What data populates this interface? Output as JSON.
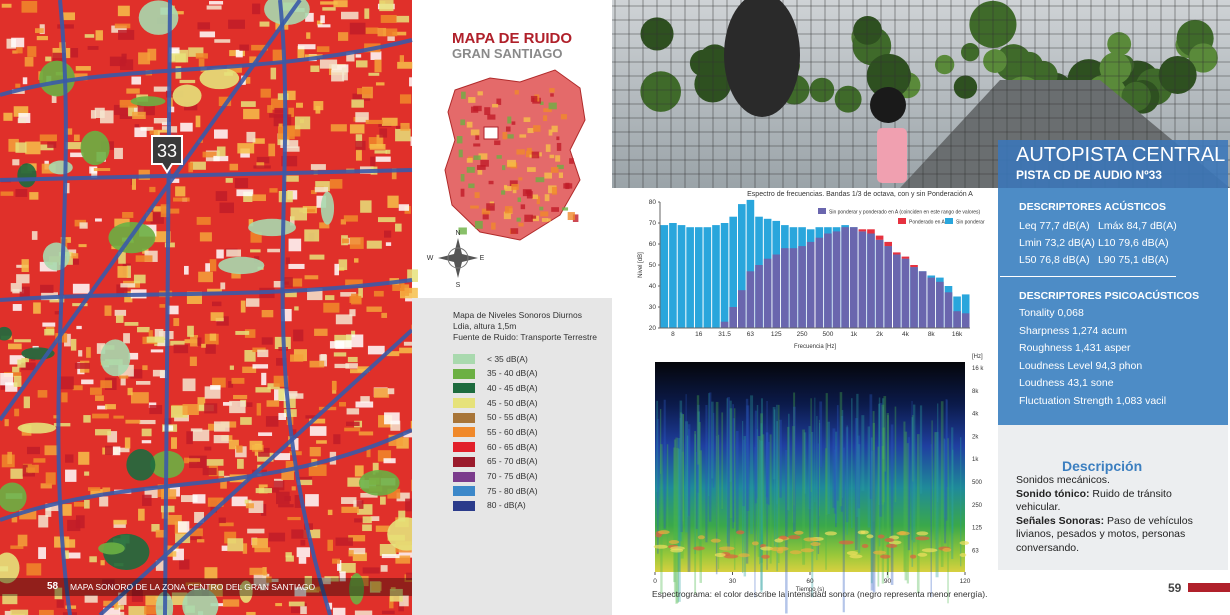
{
  "left_page": {
    "page_number": "58",
    "footer": "MAPA SONORO DE LA ZONA CENTRO DEL GRAN SANTIAGO",
    "marker": "33"
  },
  "map_panel": {
    "title": "MAPA DE RUIDO",
    "subtitle": "GRAN SANTIAGO",
    "compass": [
      "N",
      "S",
      "W",
      "E"
    ],
    "legend_title": [
      "Mapa de Niveles Sonoros Diurnos",
      "Ldia, altura 1,5m",
      "Fuente de Ruido: Transporte Terrestre"
    ],
    "legend": [
      {
        "label": "< 35  dB(A)",
        "color": "#a9d9ae"
      },
      {
        "label": "35  -  40  dB(A)",
        "color": "#6cb043"
      },
      {
        "label": "40  -  45  dB(A)",
        "color": "#1d6b3e"
      },
      {
        "label": "45  -  50  dB(A)",
        "color": "#e6e27a"
      },
      {
        "label": "50  -  55  dB(A)",
        "color": "#a87538"
      },
      {
        "label": "55  -  60  dB(A)",
        "color": "#f0892a"
      },
      {
        "label": "60  -  65  dB(A)",
        "color": "#e2202b"
      },
      {
        "label": "65  -  70  dB(A)",
        "color": "#9b1b2c"
      },
      {
        "label": "70  -  75  dB(A)",
        "color": "#7b3b8c"
      },
      {
        "label": "75  -  80  dB(A)",
        "color": "#3c88c9"
      },
      {
        "label": "80  -         dB(A)",
        "color": "#2b3b8b"
      }
    ]
  },
  "right_page": {
    "title": "AUTOPISTA CENTRAL",
    "subtitle": "PISTA CD DE AUDIO Nº33",
    "acoustic": {
      "heading": "DESCRIPTORES ACÚSTICOS",
      "items": [
        "Leq 77,7 dB(A)",
        "Lmáx 84,7 dB(A)",
        "Lmin 73,2 dB(A)",
        "L10 79,6 dB(A)",
        "L50 76,8 dB(A)",
        "L90 75,1 dB(A)"
      ]
    },
    "psycho": {
      "heading": "DESCRIPTORES PSICOACÚSTICOS",
      "items": [
        "Tonality 0,068",
        "Sharpness 1,274 acum",
        "Roughness 1,431 asper",
        "Loudness Level 94,3 phon",
        "Loudness 43,1 sone",
        "Fluctuation Strength 1,083 vacil"
      ]
    },
    "description": {
      "heading": "Descripción",
      "line1": "Sonidos mecánicos.",
      "tonal_label": "Sonido tónico:",
      "tonal_text": " Ruido de tránsito vehicular.",
      "signals_label": "Señales Sonoras:",
      "signals_text": " Paso de vehículos livianos, pesados y motos, personas conversando."
    },
    "caption": "Espectrograma: el color describe la intensidad sonora (negro representa menor energía).",
    "page_number": "59"
  },
  "spectrum": {
    "type": "bar",
    "title": "Espectro de frecuencias. Bandas 1/3 de octava, con y sin Ponderación A",
    "xlabel": "Frecuencia [Hz]",
    "ylabel": "Nivel [dB]",
    "categories": [
      null,
      "8",
      null,
      null,
      "16",
      null,
      null,
      "31.5",
      null,
      null,
      "63",
      null,
      null,
      "125",
      null,
      null,
      "250",
      null,
      null,
      "500",
      null,
      null,
      "1k",
      null,
      null,
      "2k",
      null,
      null,
      "4k",
      null,
      null,
      "8k",
      null,
      null,
      "16k",
      null
    ],
    "series": [
      {
        "name": "Sin ponderar",
        "color": "#29a6dc",
        "values": [
          69,
          70,
          69,
          68,
          68,
          68,
          69,
          70,
          73,
          79,
          81,
          73,
          72,
          71,
          69,
          68,
          68,
          67,
          68,
          68,
          68,
          69,
          68,
          66,
          65,
          62,
          59,
          55,
          53,
          49,
          47,
          45,
          44,
          40,
          35,
          36
        ]
      },
      {
        "name": "Ponderado en A",
        "color": "#e6313f",
        "values": [
          null,
          null,
          null,
          null,
          null,
          null,
          null,
          23,
          30,
          38,
          47,
          50,
          53,
          55,
          58,
          58,
          59,
          61,
          63,
          65,
          66,
          68,
          68,
          67,
          67,
          64,
          61,
          56,
          54,
          50,
          47,
          44,
          42,
          37,
          28,
          27
        ]
      }
    ],
    "overlap": {
      "name": "Sin ponderar y ponderado en A (coinciden en este rango de valores)",
      "color": "#6a66ae"
    },
    "ylim": [
      20,
      80
    ],
    "yticks": [
      20,
      30,
      40,
      50,
      60,
      70,
      80
    ]
  },
  "spectrogram": {
    "xlabel": "Tiempo (s)",
    "xlim": [
      0,
      120
    ],
    "xticks": [
      0,
      30,
      60,
      90,
      120
    ],
    "freq_unit": "[Hz]",
    "freq_labels": [
      "16 k",
      "8k",
      "4k",
      "2k",
      "1k",
      "500",
      "250",
      "125",
      "63"
    ]
  }
}
